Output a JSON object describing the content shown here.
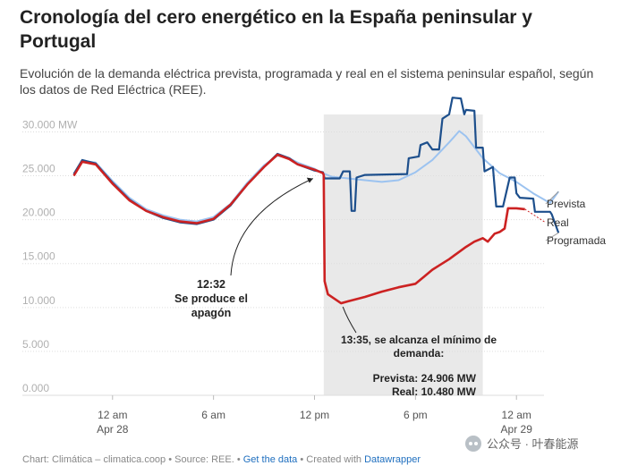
{
  "header": {
    "title": "Cronología del cero energético en la España peninsular y Portugal",
    "subtitle": "Evolución de la demanda eléctrica prevista, programada y real en el sistema peninsular español, según los datos de Red Eléctrica (REE)."
  },
  "colors": {
    "prevista": "#9cc3f0",
    "programada": "#1d4f8c",
    "real": "#cc2222",
    "shade": "#e9e9e9",
    "grid": "#dddddd",
    "tick_text": "#b0b0b0"
  },
  "chart_data": {
    "type": "line",
    "x_unit": "hours since 12 am Apr 28",
    "xlim": [
      -2.7,
      26.7
    ],
    "ylim": [
      0,
      33000
    ],
    "y_ticks": [
      0,
      5000,
      10000,
      15000,
      20000,
      25000,
      30000
    ],
    "y_tick_labels": [
      "0.000",
      "5.000",
      "10.000",
      "15.000",
      "20.000",
      "25.000",
      "30.000 MW"
    ],
    "x_ticks": [
      0,
      6,
      12,
      18,
      24
    ],
    "x_tick_labels": [
      [
        "12 am",
        "Apr 28"
      ],
      [
        "6 am",
        ""
      ],
      [
        "12 pm",
        ""
      ],
      [
        "6 pm",
        ""
      ],
      [
        "12 am",
        "Apr 29"
      ]
    ],
    "grid": true,
    "shaded_region": [
      12.55,
      22.0
    ],
    "series": [
      {
        "name": "Prevista",
        "color": "#9cc3f0",
        "points": [
          [
            -2.3,
            25200
          ],
          [
            -1.8,
            26700
          ],
          [
            -1.0,
            26500
          ],
          [
            0,
            24400
          ],
          [
            1,
            22500
          ],
          [
            2,
            21200
          ],
          [
            3,
            20500
          ],
          [
            4,
            20000
          ],
          [
            5,
            19800
          ],
          [
            6,
            20300
          ],
          [
            7,
            21800
          ],
          [
            8,
            24200
          ],
          [
            9,
            26200
          ],
          [
            9.8,
            27300
          ],
          [
            10.5,
            27000
          ],
          [
            11,
            26500
          ],
          [
            12,
            25800
          ],
          [
            12.5,
            25300
          ],
          [
            13,
            24900
          ],
          [
            14,
            24700
          ],
          [
            15,
            24500
          ],
          [
            16,
            24300
          ],
          [
            17,
            24500
          ],
          [
            18,
            25400
          ],
          [
            19,
            26800
          ],
          [
            20,
            28800
          ],
          [
            20.6,
            30100
          ],
          [
            21,
            29500
          ],
          [
            22,
            27000
          ],
          [
            23,
            25300
          ],
          [
            24,
            24300
          ],
          [
            25,
            23000
          ],
          [
            26,
            21900
          ],
          [
            26.5,
            23200
          ]
        ]
      },
      {
        "name": "Programada",
        "color": "#1d4f8c",
        "points": [
          [
            -2.3,
            25200
          ],
          [
            -1.8,
            26800
          ],
          [
            -1.0,
            26400
          ],
          [
            0,
            24200
          ],
          [
            1,
            22300
          ],
          [
            2,
            21000
          ],
          [
            3,
            20200
          ],
          [
            4,
            19700
          ],
          [
            5,
            19500
          ],
          [
            6,
            20000
          ],
          [
            7,
            21600
          ],
          [
            8,
            24000
          ],
          [
            9,
            26000
          ],
          [
            9.8,
            27500
          ],
          [
            10.5,
            27000
          ],
          [
            11,
            26300
          ],
          [
            12,
            25600
          ],
          [
            12.5,
            25400
          ],
          [
            12.6,
            24700
          ],
          [
            13.5,
            24700
          ],
          [
            13.7,
            25500
          ],
          [
            14.1,
            25500
          ],
          [
            14.2,
            21000
          ],
          [
            14.4,
            21000
          ],
          [
            14.5,
            24800
          ],
          [
            15,
            25100
          ],
          [
            17.5,
            25200
          ],
          [
            17.6,
            27000
          ],
          [
            18.2,
            27200
          ],
          [
            18.3,
            28500
          ],
          [
            18.7,
            28800
          ],
          [
            19,
            28000
          ],
          [
            19.4,
            28000
          ],
          [
            19.6,
            31500
          ],
          [
            20.0,
            32000
          ],
          [
            20.2,
            33900
          ],
          [
            20.7,
            33800
          ],
          [
            20.9,
            32000
          ],
          [
            21.0,
            32500
          ],
          [
            21.5,
            32400
          ],
          [
            21.6,
            28200
          ],
          [
            22.0,
            28200
          ],
          [
            22.1,
            25500
          ],
          [
            22.6,
            26000
          ],
          [
            22.8,
            21500
          ],
          [
            23.2,
            21500
          ],
          [
            23.6,
            24800
          ],
          [
            23.9,
            24800
          ],
          [
            24.0,
            23000
          ],
          [
            24.2,
            22500
          ],
          [
            25.0,
            22400
          ],
          [
            25.1,
            20900
          ],
          [
            26.0,
            20900
          ],
          [
            26.1,
            20600
          ],
          [
            26.5,
            18500
          ]
        ]
      },
      {
        "name": "Real",
        "color": "#cc2222",
        "points": [
          [
            -2.3,
            25000
          ],
          [
            -1.8,
            26600
          ],
          [
            -1.0,
            26300
          ],
          [
            0,
            24100
          ],
          [
            1,
            22200
          ],
          [
            2,
            21000
          ],
          [
            3,
            20300
          ],
          [
            4,
            19800
          ],
          [
            5,
            19600
          ],
          [
            6,
            20100
          ],
          [
            7,
            21700
          ],
          [
            8,
            24000
          ],
          [
            9,
            26000
          ],
          [
            9.8,
            27400
          ],
          [
            10.5,
            26900
          ],
          [
            11,
            26300
          ],
          [
            12,
            25700
          ],
          [
            12.5,
            25300
          ],
          [
            12.55,
            25100
          ],
          [
            12.6,
            13000
          ],
          [
            12.8,
            11500
          ],
          [
            13.58,
            10480
          ],
          [
            14,
            10700
          ],
          [
            15,
            11200
          ],
          [
            16,
            11800
          ],
          [
            17,
            12300
          ],
          [
            18,
            12700
          ],
          [
            18.5,
            13500
          ],
          [
            19,
            14300
          ],
          [
            19.5,
            14900
          ],
          [
            20,
            15500
          ],
          [
            20.5,
            16200
          ],
          [
            21,
            16900
          ],
          [
            21.5,
            17500
          ],
          [
            22,
            17900
          ],
          [
            22.3,
            17500
          ],
          [
            22.7,
            18400
          ],
          [
            23,
            18600
          ],
          [
            23.3,
            19000
          ],
          [
            23.5,
            21300
          ],
          [
            24,
            21300
          ],
          [
            24.5,
            21200
          ]
        ]
      }
    ],
    "line_labels": [
      {
        "series": "Prevista",
        "text": "Prevista"
      },
      {
        "series": "Real",
        "text": "Real"
      },
      {
        "series": "Programada",
        "text": "Programada"
      }
    ],
    "annotations": [
      {
        "id": "blackout",
        "lines": [
          "12:32",
          "Se produce el",
          "apagón"
        ],
        "target": [
          12.55,
          25100
        ]
      },
      {
        "id": "minimum",
        "lines": [
          "13:35, se alcanza el mínimo de",
          "demanda:"
        ],
        "target": [
          13.58,
          10480
        ]
      },
      {
        "id": "minimum-values",
        "lines": [
          "Prevista: 24.906 MW",
          "Real: 10.480 MW"
        ]
      }
    ]
  },
  "footer": {
    "prefix": "Chart: Climática – climatica.coop • Source: REE. • ",
    "data_link": "Get the data",
    "middle": " • Created with ",
    "tool_link": "Datawrapper"
  },
  "watermark": {
    "text": "公众号 · 叶春能源",
    "icon": "wechat-icon"
  }
}
